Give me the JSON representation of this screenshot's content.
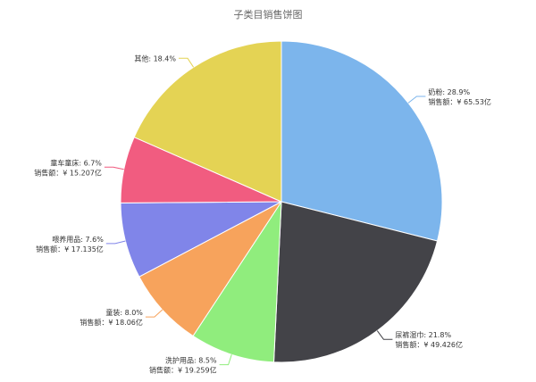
{
  "chart_data": {
    "type": "pie",
    "title": "子类目销售饼图",
    "value_prefix": "销售额：",
    "categories": [
      "奶粉",
      "尿裤湿巾",
      "洗护用品",
      "童装",
      "喂养用品",
      "童车童床",
      "其他"
    ],
    "percents": [
      28.9,
      21.8,
      8.5,
      8.0,
      7.6,
      6.7,
      18.4
    ],
    "values": [
      "¥ 65.53亿",
      "¥ 49.426亿",
      "¥ 19.259亿",
      "¥ 18.06亿",
      "¥ 17.135亿",
      "¥ 15.207亿",
      null
    ],
    "colors": [
      "#7cb5ec",
      "#434348",
      "#90ed7d",
      "#f7a35c",
      "#8085e9",
      "#f15c80",
      "#e4d354"
    ],
    "legend": "none",
    "start_angle_deg": 0,
    "direction": "clockwise"
  }
}
